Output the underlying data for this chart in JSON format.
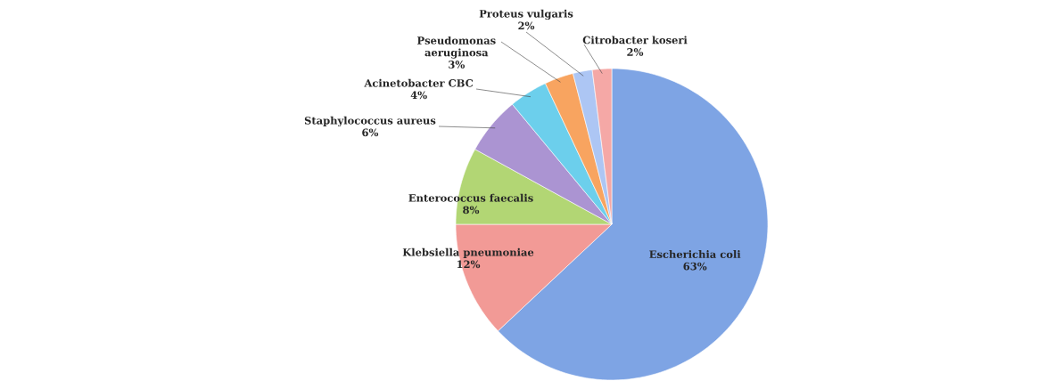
{
  "chart_data": {
    "type": "pie",
    "categories": [
      "Escherichia coli",
      "Klebsiella pneumoniae",
      "Enterococcus faecalis",
      "Staphylococcus aureus",
      "Acinetobacter CBC",
      "Pseudomonas aeruginosa",
      "Proteus vulgaris",
      "Citrobacter koseri"
    ],
    "values": [
      63,
      12,
      8,
      6,
      4,
      3,
      2,
      2
    ],
    "value_labels": [
      "63%",
      "12%",
      "8%",
      "6%",
      "4%",
      "3%",
      "2%",
      "2%"
    ],
    "colors": [
      "#7ea4e4",
      "#f29a96",
      "#b2d674",
      "#ab94d2",
      "#6ccfec",
      "#f8a460",
      "#adc6f4",
      "#f5a8a6"
    ]
  }
}
